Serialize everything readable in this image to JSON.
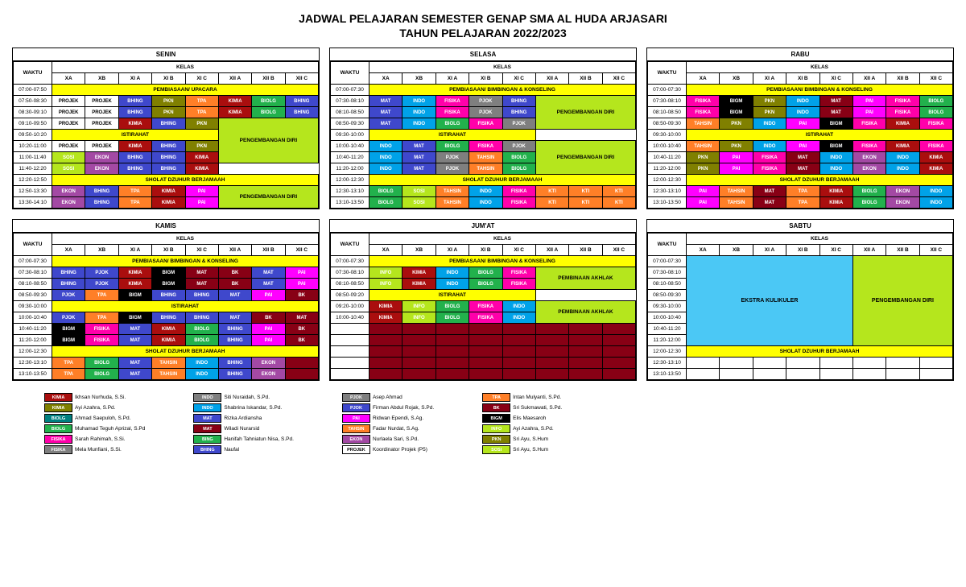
{
  "title": "JADWAL PELAJARAN SEMESTER GENAP SMA AL HUDA ARJASARI",
  "subtitle": "TAHUN PELAJARAN 2022/2023",
  "waktu_label": "WAKTU",
  "kelas_label": "KELAS",
  "class_cols": [
    "XA",
    "XB",
    "XI A",
    "XI B",
    "XI C",
    "XII A",
    "XII B",
    "XII C"
  ],
  "colors": {
    "yellow": "#ffff00",
    "lime": "#b5e61d",
    "blue": "#3f48cc",
    "olive": "#808000",
    "orange": "#ff7f27",
    "red": "#aa0e0e",
    "green": "#22b14c",
    "teal": "#008080",
    "gray": "#7f7f7f",
    "dgray": "#555555",
    "cyan": "#00a2e8",
    "pink": "#ff00aa",
    "magenta": "#ff00ff",
    "purple": "#a349a4",
    "black": "#000000",
    "brown": "#b97a57",
    "dred": "#880015",
    "white": "#ffffff",
    "skyblue": "#4bc8f5"
  },
  "subjects": {
    "BHING": {
      "c": "blue"
    },
    "PKN": {
      "c": "olive"
    },
    "TPA": {
      "c": "orange"
    },
    "KIMIA": {
      "c": "red"
    },
    "BIOLG": {
      "c": "green"
    },
    "BIOLGd": {
      "c": "teal"
    },
    "MAT": {
      "c": "blue"
    },
    "MATd": {
      "c": "dred"
    },
    "INDO": {
      "c": "cyan"
    },
    "FISIKA": {
      "c": "pink"
    },
    "FISIKAg": {
      "c": "gray"
    },
    "PJOK": {
      "c": "gray"
    },
    "PJOKb": {
      "c": "blue"
    },
    "BIGM": {
      "c": "black"
    },
    "PAI": {
      "c": "magenta"
    },
    "TAHSIN": {
      "c": "orange"
    },
    "EKON": {
      "c": "purple"
    },
    "SOSI": {
      "c": "lime"
    },
    "KTI": {
      "c": "orange"
    },
    "INFO": {
      "c": "lime"
    },
    "BK": {
      "c": "dred"
    },
    "PROJEK": {
      "c": "white",
      "t": "dark"
    }
  },
  "days": [
    {
      "name": "SENIN",
      "rows": [
        {
          "t": "07:00-07:50",
          "span": "PEMBIASAAN/ UPACARA",
          "bg": "yellow"
        },
        {
          "t": "07:50-08:30",
          "c": [
            "PROJEK",
            "PROJEK",
            "BHING",
            "PKN",
            "TPA",
            "KIMIA",
            "BIOLG",
            "BHING"
          ]
        },
        {
          "t": "08:30-09:10",
          "c": [
            "PROJEK",
            "PROJEK",
            "BHING",
            "PKN",
            "TPA",
            "KIMIA",
            "BIOLG",
            "BHING"
          ]
        },
        {
          "t": "09:10-09:50",
          "c": [
            "PROJEK",
            "PROJEK",
            "KIMIA",
            "BHING",
            "PKN"
          ],
          "merge_from": 5,
          "merge_span": 3,
          "merge_rows": 4,
          "merge_text": "PENGEMBANGAN DIRI",
          "merge_bg": "lime"
        },
        {
          "t": "09:50-10:20",
          "span": "ISTIRAHAT",
          "bg": "yellow",
          "span_cols": 5
        },
        {
          "t": "10:20-11:00",
          "c": [
            "PROJEK",
            "PROJEK",
            "KIMIA",
            "BHING",
            "PKN"
          ]
        },
        {
          "t": "11:00-11:40",
          "c": [
            "SOSI",
            "EKON",
            "BHING",
            "BHING",
            "KIMIA"
          ]
        },
        {
          "t": "11:40-12:20",
          "c": [
            "SOSI",
            "EKON",
            "BHING",
            "BHING",
            "KIMIA"
          ],
          "unmerge": true,
          "extra": [
            "",
            "",
            ""
          ],
          "extra_bg": "lime"
        },
        {
          "t": "12:20-12:50",
          "span": "SHOLAT DZUHUR BERJAMAAH",
          "bg": "yellow"
        },
        {
          "t": "12:50-13:30",
          "c": [
            "EKON",
            "BHING",
            "TPA",
            "KIMIA",
            "PAI"
          ],
          "merge_from": 5,
          "merge_span": 3,
          "merge_rows": 2,
          "merge_text": "PENGEMBANGAN DIRI",
          "merge_bg": "lime"
        },
        {
          "t": "13:30-14:10",
          "c": [
            "EKON",
            "BHING",
            "TPA",
            "KIMIA",
            "PAI"
          ]
        }
      ]
    },
    {
      "name": "SELASA",
      "rows": [
        {
          "t": "07:00-07:30",
          "span": "PEMBIASAAN/ BIMBINGAN & KONSELING",
          "bg": "yellow"
        },
        {
          "t": "07:30-08:10",
          "c": [
            "MAT",
            "INDO",
            "FISIKA",
            "PJOK",
            "BHING"
          ],
          "merge_from": 5,
          "merge_span": 3,
          "merge_rows": 3,
          "merge_text": "PENGEMBANGAN DIRI",
          "merge_bg": "lime"
        },
        {
          "t": "08:10-08:50",
          "c": [
            "MAT",
            "INDO",
            "FISIKA",
            "PJOK",
            "BHING"
          ]
        },
        {
          "t": "08:50-09:30",
          "c": [
            "MAT",
            "INDO",
            "BIOLG",
            "FISIKA",
            "PJOK"
          ]
        },
        {
          "t": "09:30-10:00",
          "span": "ISTIRAHAT",
          "bg": "yellow",
          "span_cols": 5
        },
        {
          "t": "10:00-10:40",
          "c": [
            "INDO",
            "MAT",
            "BIOLG",
            "FISIKA",
            "PJOK"
          ],
          "merge_from": 5,
          "merge_span": 3,
          "merge_rows": 3,
          "merge_text": "PENGEMBANGAN DIRI",
          "merge_bg": "lime"
        },
        {
          "t": "10:40-11:20",
          "c": [
            "INDO",
            "MAT",
            "PJOK",
            "TAHSIN",
            "BIOLG"
          ]
        },
        {
          "t": "11:20-12:00",
          "c": [
            "INDO",
            "MAT",
            "PJOK",
            "TAHSIN",
            "BIOLG"
          ]
        },
        {
          "t": "12:00-12:30",
          "span": "SHOLAT DZUHUR BERJAMAAH",
          "bg": "yellow"
        },
        {
          "t": "12:30-13:10",
          "c": [
            "BIOLG",
            "SOSI",
            "TAHSIN",
            "INDO",
            "FISIKA",
            "KTI",
            "KTI",
            "KTI"
          ]
        },
        {
          "t": "13:10-13:50",
          "c": [
            "BIOLG",
            "SOSI",
            "TAHSIN",
            "INDO",
            "FISIKA",
            "KTI",
            "KTI",
            "KTI"
          ]
        }
      ]
    },
    {
      "name": "RABU",
      "rows": [
        {
          "t": "07:00-07:30",
          "span": "PEMBIASAAN/ BIMBINGAN & KONSELING",
          "bg": "yellow"
        },
        {
          "t": "07:30-08:10",
          "c": [
            "FISIKA",
            "BIGM",
            "PKN",
            "INDO",
            "MATd",
            "PAI",
            "FISIKA",
            "BIOLG"
          ]
        },
        {
          "t": "08:10-08:50",
          "c": [
            "FISIKA",
            "BIGM",
            "PKN",
            "INDO",
            "MATd",
            "PAI",
            "FISIKA",
            "BIOLG"
          ]
        },
        {
          "t": "08:50-09:30",
          "c": [
            "TAHSIN",
            "PKN",
            "INDO",
            "PAI",
            "BIGM",
            "FISIKA",
            "KIMIA",
            "FISIKA"
          ]
        },
        {
          "t": "09:30-10:00",
          "span": "ISTIRAHAT",
          "bg": "yellow"
        },
        {
          "t": "10:00-10:40",
          "c": [
            "TAHSIN",
            "PKN",
            "INDO",
            "PAI",
            "BIGM",
            "FISIKA",
            "KIMIA",
            "FISIKA"
          ]
        },
        {
          "t": "10:40-11:20",
          "c": [
            "PKN",
            "PAI",
            "FISIKA",
            "MATd",
            "INDO",
            "EKON",
            "INDO",
            "KIMIA"
          ]
        },
        {
          "t": "11:20-12:00",
          "c": [
            "PKN",
            "PAI",
            "FISIKA",
            "MATd",
            "INDO",
            "EKON",
            "INDO",
            "KIMIA"
          ]
        },
        {
          "t": "12:00-12:30",
          "span": "SHOLAT DZUHUR BERJAMAAH",
          "bg": "yellow"
        },
        {
          "t": "12:30-13:10",
          "c": [
            "PAI",
            "TAHSIN",
            "MATd",
            "TPA",
            "KIMIA",
            "BIOLG",
            "EKON",
            "INDO"
          ]
        },
        {
          "t": "13:10-13:50",
          "c": [
            "PAI",
            "TAHSIN",
            "MATd",
            "TPA",
            "KIMIA",
            "BIOLG",
            "EKON",
            "INDO"
          ]
        }
      ]
    },
    {
      "name": "KAMIS",
      "rows": [
        {
          "t": "07:00-07:30",
          "span": "PEMBIASAAN/ BIMBINGAN & KONSELING",
          "bg": "yellow"
        },
        {
          "t": "07:30-08:10",
          "c": [
            "BHING",
            "PJOKb",
            "KIMIA",
            "BIGM",
            "MATd",
            "BK",
            "MAT",
            "PAI"
          ]
        },
        {
          "t": "08:10-08:50",
          "c": [
            "BHING",
            "PJOKb",
            "KIMIA",
            "BIGM",
            "MATd",
            "BK",
            "MAT",
            "PAI"
          ]
        },
        {
          "t": "08:50-09:30",
          "c": [
            "PJOKb",
            "TPA",
            "BIGM",
            "BHING",
            "BHING",
            "MAT",
            "PAI",
            "BK"
          ]
        },
        {
          "t": "09:30-10:00",
          "span": "ISTIRAHAT",
          "bg": "yellow"
        },
        {
          "t": "10:00-10:40",
          "c": [
            "PJOKb",
            "TPA",
            "BIGM",
            "BHING",
            "BHING",
            "MAT",
            "BK",
            "MATd"
          ]
        },
        {
          "t": "10:40-11:20",
          "c": [
            "BIGM",
            "FISIKA",
            "MAT",
            "KIMIA",
            "BIOLG",
            "BHING",
            "PAI",
            "BK"
          ]
        },
        {
          "t": "11:20-12:00",
          "c": [
            "BIGM",
            "FISIKA",
            "MAT",
            "KIMIA",
            "BIOLG",
            "BHING",
            "PAI",
            "BK"
          ]
        },
        {
          "t": "12:00-12:30",
          "span": "SHOLAT DZUHUR BERJAMAAH",
          "bg": "yellow"
        },
        {
          "t": "12:30-13:10",
          "c": [
            "TPA",
            "BIOLG",
            "MAT",
            "TAHSIN",
            "INDO",
            "BHING",
            "EKON",
            ""
          ],
          "blank_bg": "dred"
        },
        {
          "t": "13:10-13:50",
          "c": [
            "TPA",
            "BIOLG",
            "MAT",
            "TAHSIN",
            "INDO",
            "BHING",
            "EKON",
            ""
          ],
          "blank_bg": "dred"
        }
      ]
    },
    {
      "name": "JUM'AT",
      "rows": [
        {
          "t": "07:00-07:30",
          "span": "PEMBIASAAN/ BIMBINGAN & KONSELING",
          "bg": "yellow"
        },
        {
          "t": "07:30-08:10",
          "c": [
            "INFO",
            "KIMIA",
            "INDO",
            "BIOLG",
            "FISIKA"
          ],
          "merge_from": 5,
          "merge_span": 3,
          "merge_rows": 2,
          "merge_text": "PEMBINAAN AKHLAK",
          "merge_bg": "lime"
        },
        {
          "t": "08:10-08:50",
          "c": [
            "INFO",
            "KIMIA",
            "INDO",
            "BIOLG",
            "FISIKA"
          ]
        },
        {
          "t": "08:50-09:20",
          "span": "ISTIRAHAT",
          "bg": "yellow",
          "span_cols": 5
        },
        {
          "t": "09:20-10:00",
          "c": [
            "KIMIA",
            "INFO",
            "BIOLG",
            "FISIKA",
            "INDO"
          ],
          "merge_from": 5,
          "merge_span": 3,
          "merge_rows": 2,
          "merge_text": "PEMBINAAN AKHLAK",
          "merge_bg": "lime"
        },
        {
          "t": "10:00-10:40",
          "c": [
            "KIMIA",
            "INFO",
            "BIOLG",
            "FISIKA",
            "INDO"
          ]
        },
        {
          "t": "",
          "c": [
            "",
            "",
            "",
            "",
            "",
            "",
            "",
            ""
          ],
          "blank_bg": "dred",
          "time_blank": true
        },
        {
          "t": "",
          "c": [
            "",
            "",
            "",
            "",
            "",
            "",
            "",
            ""
          ],
          "blank_bg": "dred",
          "time_blank": true
        },
        {
          "t": "",
          "c": [
            "",
            "",
            "",
            "",
            "",
            "",
            "",
            ""
          ],
          "blank_bg": "dred",
          "time_blank": true
        },
        {
          "t": "",
          "c": [
            "",
            "",
            "",
            "",
            "",
            "",
            "",
            ""
          ],
          "blank_bg": "dred",
          "time_blank": true
        },
        {
          "t": "",
          "c": [
            "",
            "",
            "",
            "",
            "",
            "",
            "",
            ""
          ],
          "blank_bg": "dred",
          "time_blank": true
        }
      ]
    },
    {
      "name": "SABTU",
      "rows": [
        {
          "t": "07:00-07:30",
          "sabtu_big": true
        },
        {
          "t": "07:30-08:10"
        },
        {
          "t": "08:10-08:50"
        },
        {
          "t": "08:50-09:30"
        },
        {
          "t": "09:30-10:00"
        },
        {
          "t": "10:00-10:40"
        },
        {
          "t": "10:40-11:20"
        },
        {
          "t": "11:20-12:00"
        },
        {
          "t": "12:00-12:30",
          "span": "SHOLAT DZUHUR BERJAMAAH",
          "bg": "yellow"
        },
        {
          "t": "12:30-13:10",
          "c": [
            "",
            "",
            "",
            "",
            "",
            "",
            "",
            ""
          ]
        },
        {
          "t": "13:10-13:50",
          "c": [
            "",
            "",
            "",
            "",
            "",
            "",
            "",
            ""
          ]
        }
      ],
      "sabtu_left": "EKSTRA KULIKULER",
      "sabtu_left_bg": "skyblue",
      "sabtu_right": "PENGEMBANGAN DIRI",
      "sabtu_right_bg": "lime"
    }
  ],
  "legend": [
    [
      {
        "code": "KIMIA",
        "c": "red",
        "name": "Ikhsan Nurhuda, S.Si."
      },
      {
        "code": "KIMIA",
        "c": "olive",
        "name": "Ayi Azahra, S.Pd."
      },
      {
        "code": "BIOLG",
        "c": "teal",
        "name": "Ahmad Saepuloh, S.Pd."
      },
      {
        "code": "BIOLG",
        "c": "green",
        "name": "Muhamad Teguh Aprizal, S.Pd"
      },
      {
        "code": "FISIKA",
        "c": "pink",
        "name": "Sarah Rahimah, S.Si."
      },
      {
        "code": "FISIKA",
        "c": "gray",
        "name": "Mela Munfiani, S.Si."
      }
    ],
    [
      {
        "code": "INDO",
        "c": "gray",
        "name": "Siti Nuraidah, S.Pd."
      },
      {
        "code": "INDO",
        "c": "cyan",
        "name": "Shabrina Iskandar, S.Pd."
      },
      {
        "code": "MAT",
        "c": "blue",
        "name": "Rizka Ardiansha"
      },
      {
        "code": "MAT",
        "c": "dred",
        "name": "Wiladi Nurarsid"
      },
      {
        "code": "BING",
        "c": "green",
        "name": "Hanifah Tahniatun Nisa, S.Pd."
      },
      {
        "code": "BHING",
        "c": "blue",
        "name": "Naufal"
      }
    ],
    [
      {
        "code": "PJOK",
        "c": "gray",
        "name": "Asep Ahmad"
      },
      {
        "code": "PJOK",
        "c": "blue",
        "name": "Firman Abdul Rojak, S.Pd."
      },
      {
        "code": "PAI",
        "c": "magenta",
        "name": "Ridwan Ependi, S.Ag."
      },
      {
        "code": "TAHSIN",
        "c": "orange",
        "name": "Fadar Nurdat, S.Ag."
      },
      {
        "code": "EKON",
        "c": "purple",
        "name": "Nurlaela Sari, S.Pd."
      },
      {
        "code": "PROJEK",
        "c": "white",
        "t": "dark",
        "name": "Koordinator Projek (P5)"
      }
    ],
    [
      {
        "code": "TPA",
        "c": "orange",
        "name": "Intan Mulyanti, S.Pd."
      },
      {
        "code": "BK",
        "c": "dred",
        "name": "Sri Sukmawati, S.Pd."
      },
      {
        "code": "BIGM",
        "c": "black",
        "name": "Elis Maesaroh"
      },
      {
        "code": "INFO",
        "c": "lime",
        "name": "Ayi Azahra, S.Pd."
      },
      {
        "code": "PKN",
        "c": "olive",
        "name": "Sri Ayu, S.Hum"
      },
      {
        "code": "SOSI",
        "c": "lime",
        "name": "Sri Ayu, S.Hum"
      }
    ]
  ]
}
